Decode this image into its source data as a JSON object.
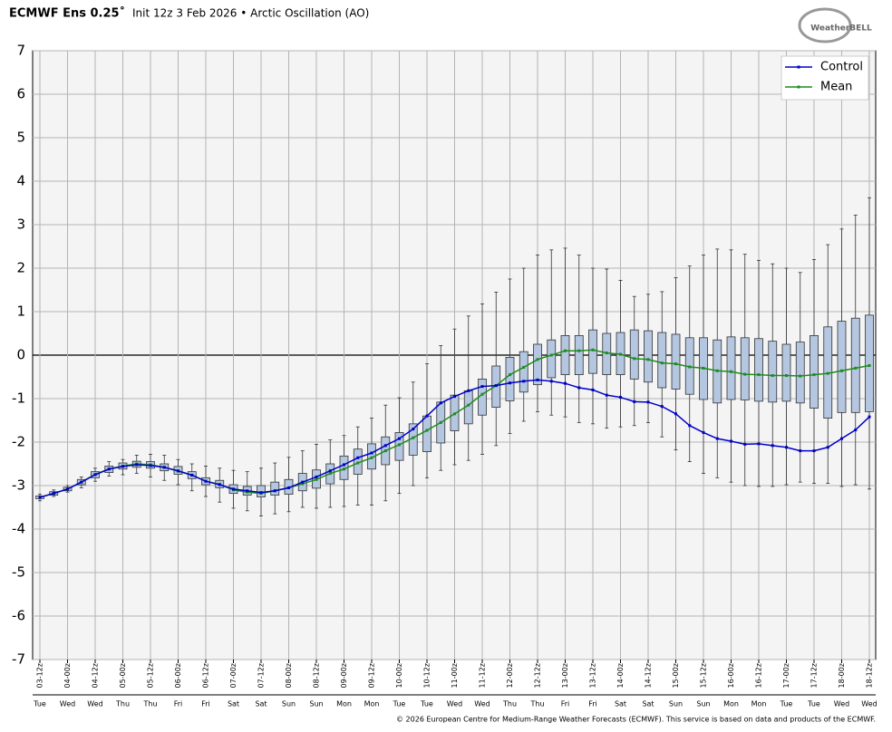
{
  "chart_data": {
    "type": "boxline",
    "title": "ECMWF Ens 0.25˚",
    "subtitle": "Init 12z 3 Feb 2026 • Arctic Oscillation (AO)",
    "logo": "WeatherBELL",
    "footer": "© 2026 European Centre for Medium-Range Weather Forecasts (ECMWF). This service is based on data and products of the ECMWF.",
    "categories": [
      "03-12z",
      null,
      "04-00z",
      null,
      "04-12z",
      null,
      "05-00z",
      null,
      "05-12z",
      null,
      "06-00z",
      null,
      "06-12z",
      null,
      "07-00z",
      null,
      "07-12z",
      null,
      "08-00z",
      null,
      "08-12z",
      null,
      "09-00z",
      null,
      "09-12z",
      null,
      "10-00z",
      null,
      "10-12z",
      null,
      "11-00z",
      null,
      "11-12z",
      null,
      "12-00z",
      null,
      "12-12z",
      null,
      "13-00z",
      null,
      "13-12z",
      null,
      "14-00z",
      null,
      "14-12z",
      null,
      "15-00z",
      null,
      "15-12z",
      null,
      "16-00z",
      null,
      "16-12z",
      null,
      "17-00z",
      null,
      "17-12z",
      null,
      "18-00z",
      null,
      "18-12z"
    ],
    "day_labels": [
      "Tue",
      null,
      "Wed",
      null,
      "Wed",
      null,
      "Thu",
      null,
      "Thu",
      null,
      "Fri",
      null,
      "Fri",
      null,
      "Sat",
      null,
      "Sat",
      null,
      "Sun",
      null,
      "Sun",
      null,
      "Mon",
      null,
      "Mon",
      null,
      "Tue",
      null,
      "Tue",
      null,
      "Wed",
      null,
      "Wed",
      null,
      "Thu",
      null,
      "Thu",
      null,
      "Fri",
      null,
      "Fri",
      null,
      "Sat",
      null,
      "Sat",
      null,
      "Sun",
      null,
      "Sun",
      null,
      "Mon",
      null,
      "Mon",
      null,
      "Tue",
      null,
      "Tue",
      null,
      "Wed",
      null,
      "Wed"
    ],
    "series": [
      {
        "name": "Control",
        "color": "#0000c8",
        "values": [
          -3.27,
          -3.18,
          -3.08,
          -2.92,
          -2.75,
          -2.62,
          -2.56,
          -2.52,
          -2.54,
          -2.58,
          -2.66,
          -2.76,
          -2.9,
          -2.98,
          -3.08,
          -3.12,
          -3.16,
          -3.12,
          -3.05,
          -2.92,
          -2.8,
          -2.66,
          -2.52,
          -2.36,
          -2.25,
          -2.08,
          -1.92,
          -1.7,
          -1.4,
          -1.1,
          -0.95,
          -0.82,
          -0.72,
          -0.7,
          -0.64,
          -0.6,
          -0.57,
          -0.6,
          -0.65,
          -0.75,
          -0.8,
          -0.92,
          -0.97,
          -1.07,
          -1.08,
          -1.18,
          -1.35,
          -1.62,
          -1.78,
          -1.92,
          -1.98,
          -2.05,
          -2.04,
          -2.08,
          -2.12,
          -2.2,
          -2.2,
          -2.12,
          -1.92,
          -1.72,
          -1.42
        ]
      },
      {
        "name": "Mean",
        "color": "#1e8c1e",
        "values": [
          -3.27,
          -3.18,
          -3.08,
          -2.92,
          -2.74,
          -2.62,
          -2.55,
          -2.5,
          -2.52,
          -2.58,
          -2.67,
          -2.76,
          -2.9,
          -2.97,
          -3.1,
          -3.15,
          -3.18,
          -3.12,
          -3.05,
          -2.96,
          -2.86,
          -2.72,
          -2.62,
          -2.48,
          -2.36,
          -2.2,
          -2.06,
          -1.9,
          -1.73,
          -1.55,
          -1.35,
          -1.15,
          -0.9,
          -0.7,
          -0.45,
          -0.28,
          -0.1,
          0.0,
          0.1,
          0.1,
          0.12,
          0.05,
          0.02,
          -0.08,
          -0.1,
          -0.18,
          -0.2,
          -0.27,
          -0.3,
          -0.36,
          -0.38,
          -0.44,
          -0.45,
          -0.47,
          -0.47,
          -0.48,
          -0.45,
          -0.42,
          -0.36,
          -0.3,
          -0.24
        ]
      }
    ],
    "boxes": {
      "color": "#b4c6e0",
      "min": [
        -3.35,
        -3.25,
        -3.15,
        -3.05,
        -2.9,
        -2.78,
        -2.75,
        -2.72,
        -2.8,
        -2.88,
        -2.98,
        -3.12,
        -3.25,
        -3.38,
        -3.52,
        -3.58,
        -3.7,
        -3.65,
        -3.6,
        -3.5,
        -3.52,
        -3.5,
        -3.48,
        -3.45,
        -3.45,
        -3.35,
        -3.18,
        -3.0,
        -2.82,
        -2.65,
        -2.52,
        -2.42,
        -2.28,
        -2.08,
        -1.8,
        -1.52,
        -1.3,
        -1.38,
        -1.42,
        -1.55,
        -1.58,
        -1.68,
        -1.65,
        -1.62,
        -1.55,
        -1.88,
        -2.18,
        -2.45,
        -2.72,
        -2.82,
        -2.92,
        -3.0,
        -3.02,
        -3.02,
        -2.98,
        -2.92,
        -2.95,
        -2.95,
        -3.02,
        -2.98,
        -3.08
      ],
      "q1": [
        -3.3,
        -3.22,
        -3.12,
        -2.98,
        -2.82,
        -2.7,
        -2.62,
        -2.58,
        -2.6,
        -2.66,
        -2.74,
        -2.84,
        -2.98,
        -3.05,
        -3.18,
        -3.22,
        -3.26,
        -3.22,
        -3.2,
        -3.12,
        -3.06,
        -2.96,
        -2.86,
        -2.74,
        -2.62,
        -2.52,
        -2.42,
        -2.3,
        -2.22,
        -2.02,
        -1.74,
        -1.58,
        -1.38,
        -1.2,
        -1.05,
        -0.85,
        -0.68,
        -0.52,
        -0.45,
        -0.45,
        -0.42,
        -0.45,
        -0.45,
        -0.55,
        -0.62,
        -0.75,
        -0.78,
        -0.9,
        -1.02,
        -1.1,
        -1.02,
        -1.03,
        -1.06,
        -1.08,
        -1.06,
        -1.1,
        -1.22,
        -1.45,
        -1.32,
        -1.32,
        -1.3
      ],
      "q3": [
        -3.24,
        -3.14,
        -3.04,
        -2.86,
        -2.68,
        -2.55,
        -2.48,
        -2.44,
        -2.45,
        -2.5,
        -2.56,
        -2.68,
        -2.82,
        -2.88,
        -2.98,
        -3.02,
        -3.0,
        -2.92,
        -2.86,
        -2.72,
        -2.64,
        -2.5,
        -2.32,
        -2.16,
        -2.04,
        -1.88,
        -1.78,
        -1.58,
        -1.4,
        -1.08,
        -0.92,
        -0.82,
        -0.55,
        -0.25,
        -0.05,
        0.08,
        0.25,
        0.35,
        0.45,
        0.45,
        0.58,
        0.5,
        0.52,
        0.58,
        0.56,
        0.52,
        0.48,
        0.4,
        0.4,
        0.35,
        0.42,
        0.4,
        0.38,
        0.32,
        0.25,
        0.3,
        0.45,
        0.65,
        0.78,
        0.85,
        0.92
      ],
      "max": [
        -3.2,
        -3.1,
        -3.0,
        -2.8,
        -2.6,
        -2.45,
        -2.4,
        -2.3,
        -2.28,
        -2.3,
        -2.4,
        -2.5,
        -2.55,
        -2.6,
        -2.65,
        -2.68,
        -2.6,
        -2.48,
        -2.35,
        -2.2,
        -2.05,
        -1.95,
        -1.85,
        -1.65,
        -1.45,
        -1.15,
        -0.98,
        -0.62,
        -0.2,
        0.22,
        0.6,
        0.9,
        1.18,
        1.45,
        1.75,
        2.0,
        2.3,
        2.42,
        2.46,
        2.3,
        2.0,
        1.98,
        1.72,
        1.35,
        1.4,
        1.46,
        1.78,
        2.05,
        2.3,
        2.44,
        2.42,
        2.32,
        2.18,
        2.1,
        2.0,
        1.9,
        2.2,
        2.54,
        2.9,
        3.22,
        3.62
      ]
    },
    "ylim": [
      -7,
      7
    ],
    "yticks": [
      -7,
      -6,
      -5,
      -4,
      -3,
      -2,
      -1,
      0,
      1,
      2,
      3,
      4,
      5,
      6,
      7
    ],
    "grid": true,
    "legend": "upper right"
  }
}
